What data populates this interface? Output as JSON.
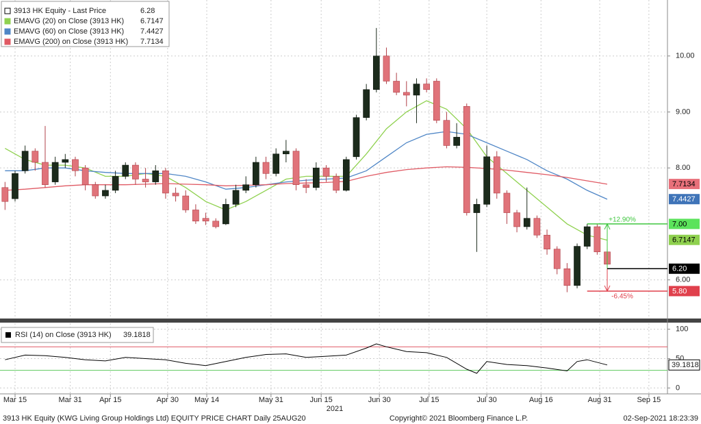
{
  "chart_data": [
    {
      "type": "candlestick",
      "xlim": [
        -1,
        132
      ],
      "ylim": [
        5.31,
        11.0
      ],
      "xticks": [
        {
          "value": 2,
          "label": "Mar 15"
        },
        {
          "value": 13,
          "label": "Mar 31"
        },
        {
          "value": 21,
          "label": "Apr 15"
        },
        {
          "value": 32.4,
          "label": "Apr 30"
        },
        {
          "value": 40.2,
          "label": "May 14"
        },
        {
          "value": 53,
          "label": "May 31"
        },
        {
          "value": 63,
          "label": "Jun 15"
        },
        {
          "value": 74.6,
          "label": "Jun 30"
        },
        {
          "value": 84.5,
          "label": "Jul 15"
        },
        {
          "value": 96,
          "label": "Jul 30"
        },
        {
          "value": 106.8,
          "label": "Aug 16"
        },
        {
          "value": 118.5,
          "label": "Aug 31"
        },
        {
          "value": 128.3,
          "label": "Sep 15"
        }
      ],
      "year_label": "2021",
      "yticks": [
        {
          "value": 10,
          "label": "10.00"
        },
        {
          "value": 9,
          "label": "9.00"
        },
        {
          "value": 8,
          "label": "8.00"
        },
        {
          "value": 6,
          "label": "6.00"
        }
      ],
      "grid": true,
      "last_price": {
        "name": "3913 HK Equity - Last Price",
        "value": 6.28,
        "color": "#000000"
      },
      "up_color": "#1c2b1c",
      "down_color": "#e0737a",
      "candles": {
        "x": [
          0,
          2,
          4,
          6,
          8,
          10,
          12,
          14,
          16,
          18,
          20,
          22,
          24,
          26,
          28,
          30,
          32,
          34,
          36,
          38,
          40,
          42,
          44,
          46,
          48,
          50,
          52,
          54,
          56,
          58,
          60,
          62,
          64,
          66,
          68,
          70,
          72,
          74,
          76,
          78,
          80,
          82,
          84,
          86,
          88,
          90,
          92,
          94,
          96,
          98,
          100,
          102,
          104,
          106,
          108,
          110,
          112,
          114,
          116,
          118,
          120
        ],
        "open": [
          7.65,
          7.45,
          7.95,
          8.3,
          8.1,
          7.75,
          8.1,
          8.15,
          8.0,
          7.7,
          7.5,
          7.6,
          7.85,
          8.05,
          7.8,
          7.75,
          7.95,
          7.55,
          7.5,
          7.25,
          7.1,
          7.05,
          7.0,
          7.35,
          7.6,
          7.7,
          8.1,
          7.9,
          8.25,
          8.3,
          7.7,
          7.65,
          8.0,
          7.85,
          7.6,
          8.2,
          8.9,
          9.4,
          10.0,
          9.55,
          9.35,
          9.3,
          9.5,
          9.55,
          8.85,
          8.4,
          9.1,
          7.2,
          7.35,
          8.2,
          7.55,
          7.2,
          6.95,
          7.1,
          6.8,
          6.55,
          6.2,
          5.9,
          6.6,
          6.95,
          6.5
        ],
        "close": [
          7.4,
          7.9,
          8.3,
          8.1,
          7.7,
          8.1,
          8.15,
          7.95,
          7.7,
          7.5,
          7.6,
          7.85,
          8.05,
          7.8,
          7.75,
          7.95,
          7.55,
          7.5,
          7.25,
          7.05,
          7.05,
          6.95,
          7.35,
          7.6,
          7.7,
          8.1,
          7.9,
          8.25,
          8.3,
          7.7,
          7.65,
          8.0,
          7.85,
          7.6,
          8.15,
          8.9,
          9.4,
          10.0,
          9.55,
          9.35,
          9.3,
          9.5,
          9.4,
          8.85,
          8.4,
          8.55,
          7.2,
          7.35,
          8.2,
          7.55,
          7.2,
          6.95,
          7.1,
          6.8,
          6.55,
          6.2,
          5.9,
          6.6,
          6.95,
          6.5,
          6.28
        ],
        "high": [
          7.75,
          7.95,
          8.4,
          8.35,
          8.75,
          8.2,
          8.25,
          8.2,
          8.05,
          7.75,
          7.7,
          7.95,
          8.1,
          8.1,
          8.0,
          8.05,
          8.0,
          7.65,
          7.6,
          7.35,
          7.2,
          7.1,
          7.45,
          7.7,
          7.85,
          8.2,
          8.2,
          8.35,
          8.5,
          8.35,
          7.8,
          8.1,
          8.05,
          7.9,
          8.2,
          8.95,
          9.5,
          10.5,
          10.15,
          9.7,
          9.55,
          9.6,
          9.6,
          9.6,
          9.0,
          8.8,
          9.15,
          7.45,
          8.4,
          8.3,
          7.6,
          7.25,
          7.65,
          7.15,
          6.9,
          6.6,
          6.3,
          6.65,
          7.0,
          7.0,
          6.55
        ],
        "low": [
          7.25,
          7.4,
          7.9,
          7.95,
          7.65,
          7.7,
          8.0,
          7.85,
          7.6,
          7.45,
          7.45,
          7.55,
          7.8,
          7.7,
          7.65,
          7.7,
          7.45,
          7.4,
          7.2,
          7.0,
          6.98,
          6.92,
          6.98,
          7.3,
          7.55,
          7.65,
          7.8,
          7.85,
          8.1,
          7.6,
          7.55,
          7.6,
          7.75,
          7.55,
          7.58,
          8.15,
          8.85,
          9.35,
          9.5,
          9.3,
          9.1,
          8.8,
          9.35,
          8.8,
          8.35,
          8.35,
          7.15,
          6.5,
          7.3,
          7.45,
          7.0,
          6.85,
          6.9,
          6.75,
          6.45,
          6.1,
          5.78,
          5.85,
          6.55,
          6.45,
          6.25
        ]
      },
      "line_x": [
        0,
        4,
        8,
        12,
        16,
        20,
        24,
        28,
        32,
        36,
        40,
        44,
        48,
        52,
        56,
        60,
        64,
        68,
        72,
        76,
        80,
        84,
        88,
        92,
        96,
        100,
        104,
        108,
        112,
        116,
        120
      ],
      "series": [
        {
          "name": "EMAVG (20)  on Close (3913 HK)",
          "last": 6.7147,
          "color": "#8fd14f",
          "values": [
            8.35,
            8.15,
            8.05,
            8.05,
            8.0,
            7.85,
            7.85,
            7.9,
            7.85,
            7.65,
            7.4,
            7.25,
            7.4,
            7.6,
            7.8,
            7.85,
            7.85,
            7.85,
            8.25,
            8.7,
            9.0,
            9.2,
            9.05,
            8.7,
            8.2,
            7.9,
            7.6,
            7.3,
            7.0,
            6.8,
            6.71
          ]
        },
        {
          "name": "EMAVG (60)  on Close (3913 HK)",
          "last": 7.4427,
          "color": "#4f86c6",
          "values": [
            7.95,
            7.95,
            8.0,
            8.0,
            7.95,
            7.92,
            7.9,
            7.9,
            7.9,
            7.85,
            7.75,
            7.62,
            7.65,
            7.7,
            7.75,
            7.78,
            7.8,
            7.82,
            7.95,
            8.2,
            8.45,
            8.6,
            8.65,
            8.6,
            8.45,
            8.3,
            8.15,
            7.95,
            7.8,
            7.6,
            7.44
          ]
        },
        {
          "name": "EMAVG (200)  on Close (3913 HK)",
          "last": 7.7134,
          "color": "#e05a64",
          "values": [
            7.6,
            7.62,
            7.65,
            7.68,
            7.7,
            7.7,
            7.7,
            7.71,
            7.72,
            7.71,
            7.7,
            7.68,
            7.69,
            7.7,
            7.72,
            7.73,
            7.74,
            7.76,
            7.85,
            7.92,
            7.97,
            8.0,
            8.02,
            8.01,
            7.99,
            7.96,
            7.92,
            7.88,
            7.83,
            7.77,
            7.71
          ]
        }
      ],
      "price_tags": [
        {
          "value": 7.7134,
          "label": "7.7134",
          "color": "#e8707a",
          "text_color": "#000000"
        },
        {
          "value": 7.4427,
          "label": "7.4427",
          "color": "#3f74b8",
          "text_color": "#ffffff"
        },
        {
          "value": 7.0,
          "label": "7.00",
          "color": "#5be35b",
          "text_color": "#000000"
        },
        {
          "value": 6.7147,
          "label": "6.7147",
          "color": "#8fd14f",
          "text_color": "#000000"
        },
        {
          "value": 5.8,
          "label": "5.80",
          "color": "#e0404c",
          "text_color": "#ffffff"
        }
      ],
      "reference_price": {
        "value": 6.2,
        "label": "6.20",
        "color": "#000000"
      },
      "range_annotations": [
        {
          "value": 7.0,
          "label": "+12.90%",
          "color": "#3ec63e"
        },
        {
          "value": 5.8,
          "label": "-6.45%",
          "color": "#e0404c"
        }
      ]
    },
    {
      "type": "line",
      "xlim": [
        -1,
        132
      ],
      "ylim": [
        -10,
        110
      ],
      "yticks": [
        100,
        50,
        0
      ],
      "levels": [
        {
          "value": 70,
          "color": "#e05a64"
        },
        {
          "value": 30,
          "color": "#5bc85b"
        }
      ],
      "x": [
        0,
        4,
        8,
        12,
        16,
        20,
        24,
        28,
        32,
        36,
        40,
        44,
        48,
        52,
        56,
        60,
        64,
        68,
        72,
        74,
        76,
        80,
        84,
        88,
        92,
        94,
        96,
        100,
        104,
        108,
        112,
        114,
        116,
        120
      ],
      "series": [
        {
          "name": "RSI (14)  on Close (3913 HK)",
          "last": 39.1818,
          "color": "#000000",
          "values": [
            48,
            56,
            55,
            52,
            48,
            46,
            52,
            50,
            48,
            42,
            38,
            45,
            52,
            57,
            58,
            52,
            54,
            56,
            68,
            75,
            70,
            62,
            60,
            52,
            32,
            25,
            45,
            40,
            38,
            34,
            29,
            45,
            48,
            39.18
          ]
        }
      ]
    }
  ],
  "footer": {
    "left": "3913 HK Equity (KWG Living Group Holdings Ltd) EQUITY PRICE CHART  Daily 25AUG20",
    "center": "Copyright© 2021 Bloomberg Finance L.P.",
    "right": "02-Sep-2021 18:23:39"
  }
}
